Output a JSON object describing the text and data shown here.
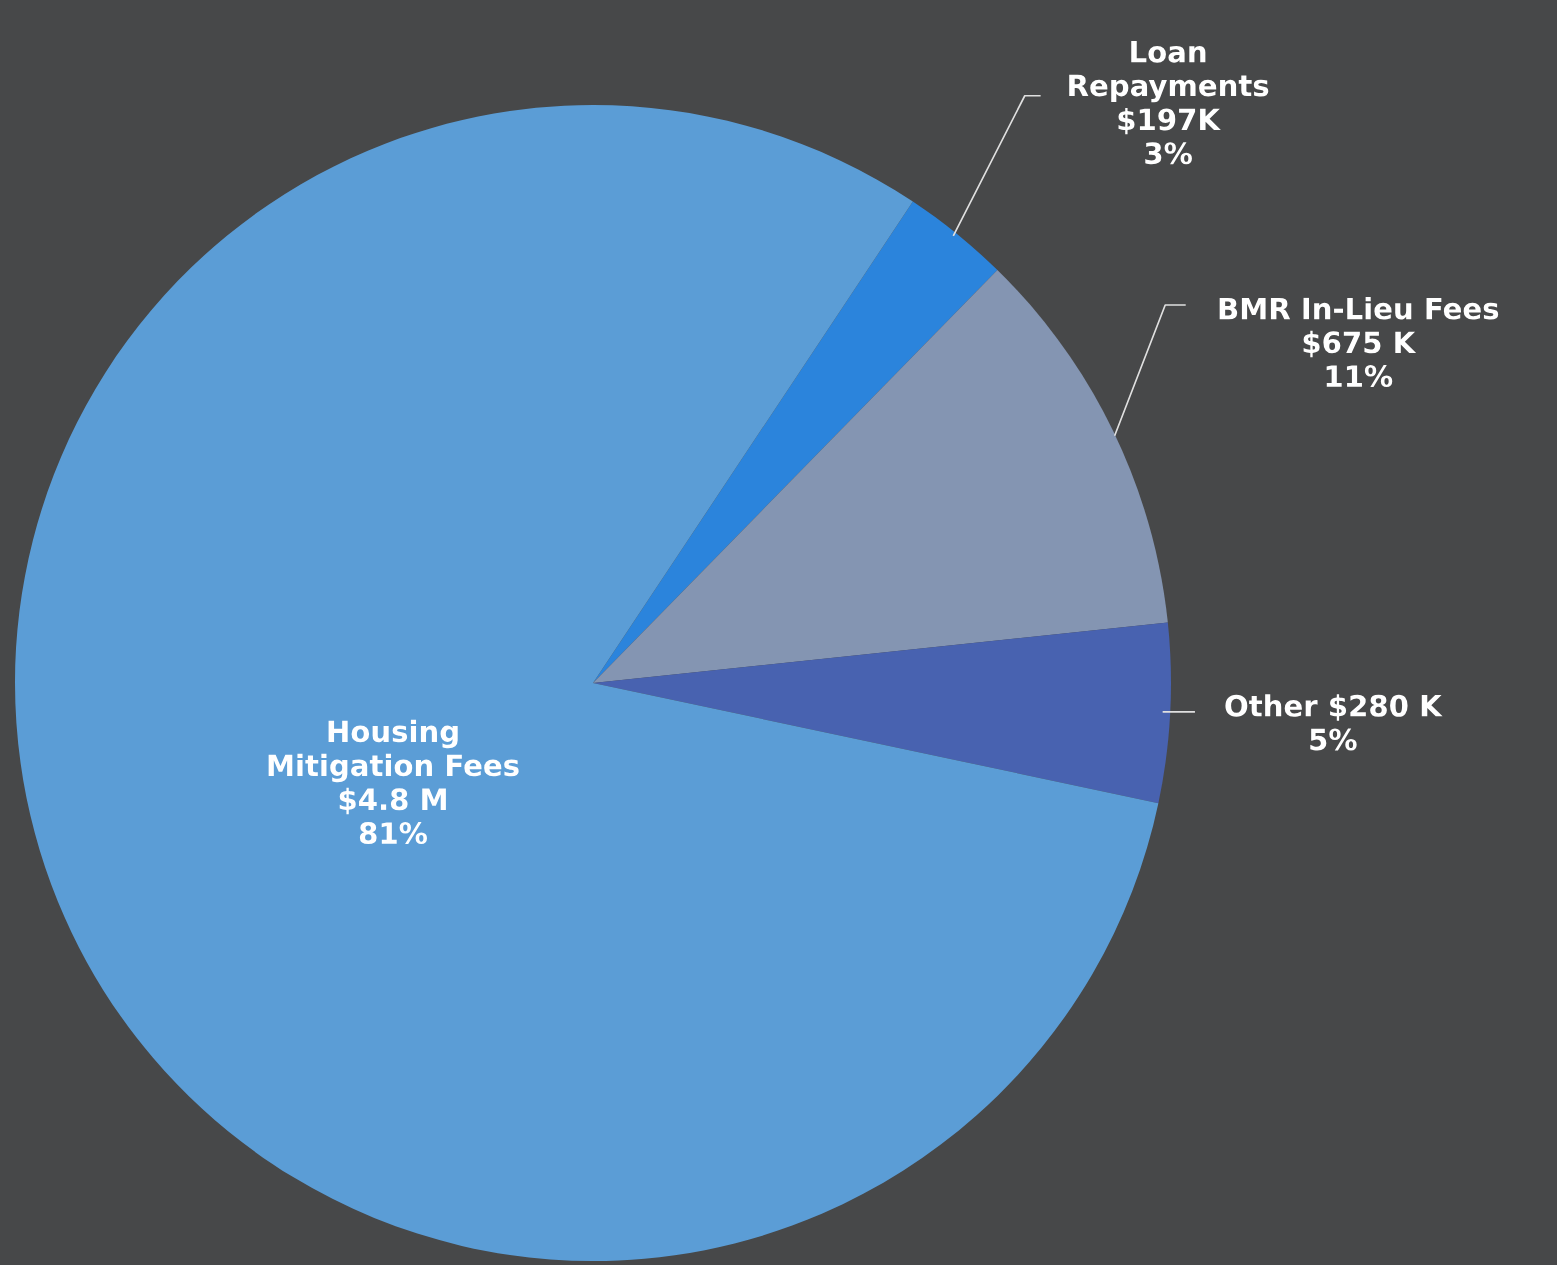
{
  "chart_data": {
    "type": "pie",
    "categories": [
      "Loan Repayments",
      "BMR In-Lieu Fees",
      "Other",
      "Housing Mitigation Fees"
    ],
    "values": [
      3,
      11,
      5,
      81
    ],
    "value_labels": [
      "$197K\n3%",
      "$675 K\n11%",
      "$280 K\n5%",
      "$4.8 M\n81%"
    ],
    "colors": [
      "#2b84dc",
      "#8495b2",
      "#4862b0",
      "#5b9dd6"
    ],
    "legend": false
  }
}
